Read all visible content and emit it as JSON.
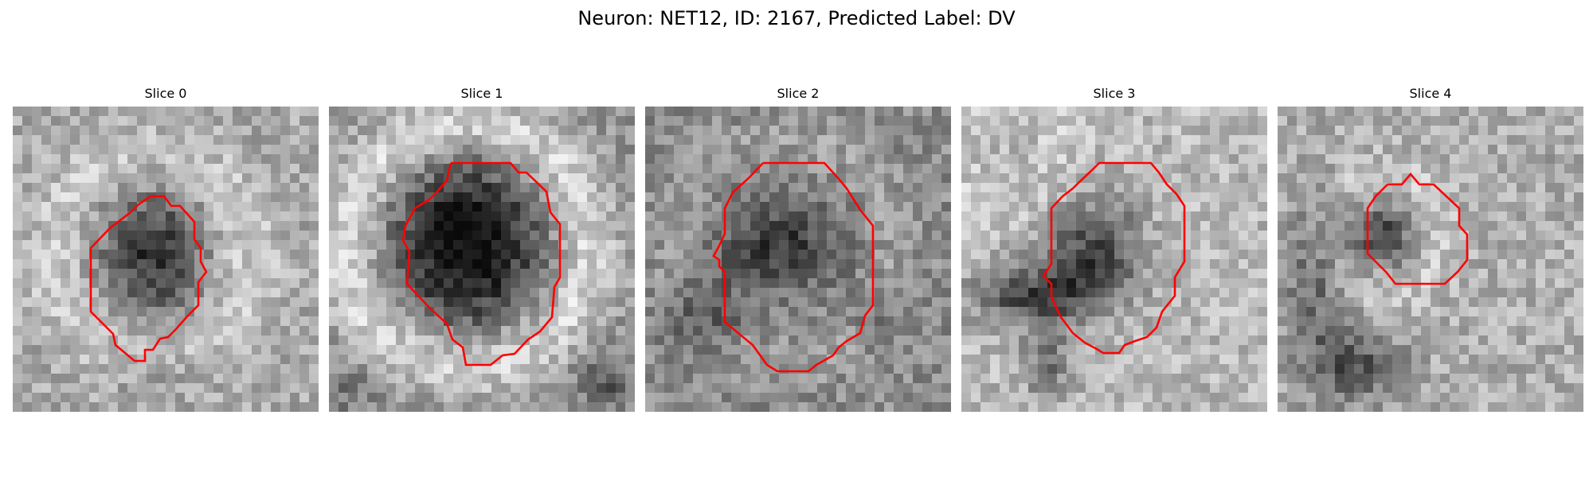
{
  "figure": {
    "title": "Neuron: NET12, ID: 2167, Predicted Label: DV"
  },
  "colors": {
    "contour": "#ff0000",
    "background": "#ffffff",
    "text": "#000000",
    "colormap": "grayscale"
  },
  "slices": [
    {
      "title": "Slice 0"
    },
    {
      "title": "Slice 1"
    },
    {
      "title": "Slice 2"
    },
    {
      "title": "Slice 3"
    },
    {
      "title": "Slice 4"
    }
  ]
}
